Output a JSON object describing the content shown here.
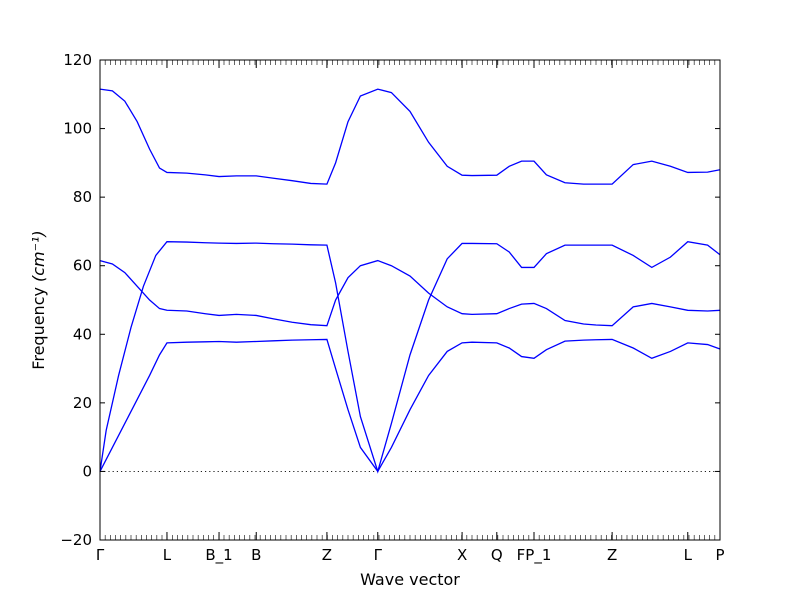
{
  "chart_data": {
    "type": "line",
    "title": "",
    "xlabel": "Wave vector",
    "ylabel": "Frequency",
    "ylabel_unit": "(cm⁻¹)",
    "ylim": [
      -20,
      120
    ],
    "y_ticks": [
      -20,
      0,
      20,
      40,
      60,
      80,
      100,
      120
    ],
    "x_ticks": [
      {
        "label": "Γ",
        "k": 0
      },
      {
        "label": "L",
        "k": 0.54
      },
      {
        "label": "B_1",
        "k": 0.96
      },
      {
        "label": "B",
        "k": 1.26
      },
      {
        "label": "Z",
        "k": 1.83
      },
      {
        "label": "Γ",
        "k": 2.24
      },
      {
        "label": "X",
        "k": 2.92
      },
      {
        "label": "Q",
        "k": 3.2
      },
      {
        "label": "FP_1",
        "k": 3.5
      },
      {
        "label": "Z",
        "k": 4.13
      },
      {
        "label": "L",
        "k": 4.74
      },
      {
        "label": "P",
        "k": 5.0
      }
    ],
    "xlim": [
      0,
      5.0
    ],
    "zero_line": true,
    "grid": false,
    "series_color": "#0000ff",
    "series": [
      {
        "k": [
          0,
          0.1,
          0.2,
          0.3,
          0.4,
          0.48,
          0.54,
          0.7,
          0.85,
          0.96,
          1.1,
          1.26,
          1.4,
          1.55,
          1.7,
          1.83,
          1.9,
          2.0,
          2.1,
          2.24,
          2.35,
          2.5,
          2.65,
          2.8,
          2.92,
          3.0,
          3.2,
          3.3,
          3.4,
          3.5,
          3.6,
          3.75,
          3.9,
          4.0,
          4.13,
          4.3,
          4.45,
          4.6,
          4.74,
          4.9,
          5.0
        ],
        "freq": [
          0,
          7,
          14,
          21,
          28,
          34,
          37.5,
          37.7,
          37.8,
          37.9,
          37.7,
          37.9,
          38.1,
          38.3,
          38.4,
          38.5,
          30,
          18,
          7,
          0,
          7,
          18,
          28,
          35,
          37.5,
          37.7,
          37.5,
          36,
          33.5,
          33,
          35.5,
          38,
          38.3,
          38.4,
          38.5,
          36,
          33,
          35,
          37.5,
          37,
          35.7
        ]
      },
      {
        "k": [
          0,
          0.05,
          0.15,
          0.25,
          0.35,
          0.45,
          0.54,
          0.7,
          0.85,
          0.96,
          1.1,
          1.26,
          1.4,
          1.55,
          1.7,
          1.83,
          1.9,
          2.0,
          2.1,
          2.24,
          2.35,
          2.5,
          2.65,
          2.8,
          2.92,
          3.0,
          3.2,
          3.3,
          3.4,
          3.5,
          3.6,
          3.75,
          3.9,
          4.0,
          4.13,
          4.3,
          4.45,
          4.6,
          4.74,
          4.9,
          5.0
        ],
        "freq": [
          0,
          12,
          28,
          42,
          54,
          63,
          67,
          66.9,
          66.7,
          66.6,
          66.5,
          66.6,
          66.4,
          66.3,
          66.1,
          66,
          55,
          35,
          16,
          0,
          14,
          34,
          50,
          62,
          66.5,
          66.5,
          66.4,
          64,
          59.5,
          59.5,
          63.5,
          66,
          66,
          66,
          66,
          63,
          59.5,
          62.5,
          67,
          66,
          63.2
        ]
      },
      {
        "k": [
          0,
          0.1,
          0.2,
          0.3,
          0.4,
          0.48,
          0.54,
          0.7,
          0.85,
          0.96,
          1.1,
          1.26,
          1.4,
          1.55,
          1.7,
          1.83,
          1.9,
          2.0,
          2.1,
          2.24,
          2.35,
          2.5,
          2.65,
          2.8,
          2.92,
          3.0,
          3.2,
          3.3,
          3.4,
          3.5,
          3.6,
          3.75,
          3.9,
          4.0,
          4.13,
          4.3,
          4.45,
          4.6,
          4.74,
          4.9,
          5.0
        ],
        "freq": [
          61.5,
          60.5,
          58,
          54,
          50,
          47.5,
          47,
          46.8,
          46,
          45.5,
          45.8,
          45.5,
          44.5,
          43.5,
          42.8,
          42.5,
          50,
          56.5,
          60,
          61.5,
          60,
          57,
          52,
          48,
          46,
          45.8,
          46,
          47.5,
          48.8,
          49,
          47.5,
          44,
          43,
          42.7,
          42.5,
          48,
          49,
          48,
          47,
          46.8,
          47
        ]
      },
      {
        "k": [
          0,
          0.1,
          0.2,
          0.3,
          0.4,
          0.48,
          0.54,
          0.7,
          0.85,
          0.96,
          1.1,
          1.26,
          1.4,
          1.55,
          1.7,
          1.83,
          1.9,
          2.0,
          2.1,
          2.24,
          2.35,
          2.5,
          2.65,
          2.8,
          2.92,
          3.0,
          3.2,
          3.3,
          3.4,
          3.5,
          3.6,
          3.75,
          3.9,
          4.0,
          4.13,
          4.3,
          4.45,
          4.6,
          4.74,
          4.9,
          5.0
        ],
        "freq": [
          111.5,
          111,
          108,
          102,
          94,
          88.5,
          87.2,
          87,
          86.5,
          86,
          86.2,
          86.2,
          85.5,
          84.8,
          84,
          83.8,
          90,
          102,
          109.5,
          111.5,
          110.5,
          105,
          96,
          89,
          86.4,
          86.3,
          86.4,
          89,
          90.5,
          90.5,
          86.5,
          84.2,
          83.8,
          83.8,
          83.8,
          89.5,
          90.5,
          89,
          87.2,
          87.3,
          88
        ]
      }
    ]
  }
}
